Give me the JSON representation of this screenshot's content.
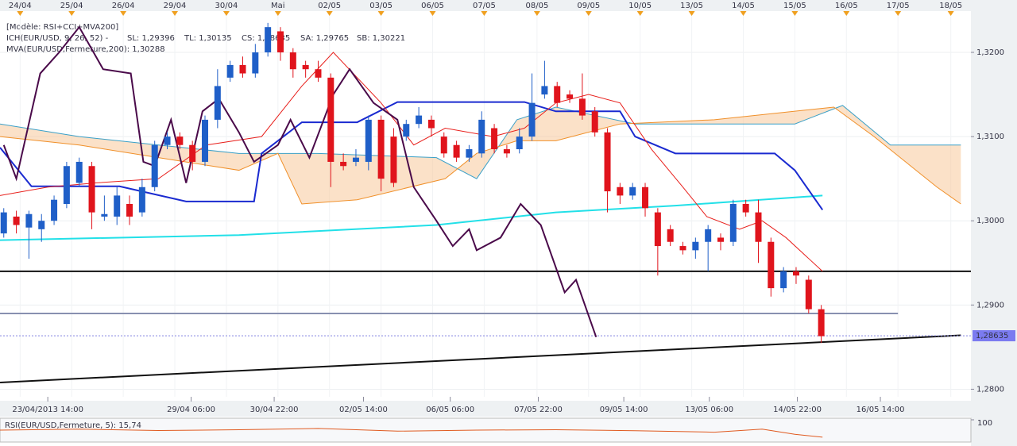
{
  "chart_data": {
    "type": "candlestick",
    "title": "[Modèle: RSI+CCI+MVA200]",
    "legend": [
      {
        "text": "ICH(EUR/USD, 9, 26, 52) -",
        "color": "#e0141c"
      },
      {
        "text": "SL: 1,29396",
        "color": "#e0141c"
      },
      {
        "text": "TL: 1,30135",
        "color": "#1a2ad0"
      },
      {
        "text": "CS: 1,28635",
        "color": "#2a2a60"
      },
      {
        "text": "SA: 1,29765",
        "color": "#f0902a"
      },
      {
        "text": "SB: 1,30221",
        "color": "#2a9ac8"
      },
      {
        "text": "MVA(EUR/USD,Fermeture,200): 1,30288",
        "color": "#22e0e8"
      }
    ],
    "up_color": "#1f5fc8",
    "down_color": "#e0141c",
    "x": [
      0,
      1,
      2,
      3,
      4,
      5,
      6,
      7,
      8,
      9,
      10,
      11,
      12,
      13,
      14,
      15,
      16,
      17,
      18,
      19,
      20,
      21,
      22,
      23,
      24,
      25,
      26,
      27,
      28,
      29,
      30,
      31,
      32,
      33,
      34,
      35,
      36,
      37,
      38,
      39,
      40,
      41,
      42,
      43,
      44,
      45,
      46,
      47,
      48,
      49,
      50,
      51,
      52,
      53,
      54,
      55,
      56,
      57,
      58,
      59,
      60,
      61,
      62,
      63,
      64,
      65
    ],
    "open": [
      1.2985,
      1.3005,
      1.2992,
      1.299,
      1.3,
      1.302,
      1.3045,
      1.3065,
      1.3005,
      1.3005,
      1.302,
      1.301,
      1.304,
      1.309,
      1.31,
      1.309,
      1.307,
      1.312,
      1.317,
      1.3185,
      1.3175,
      1.32,
      1.3225,
      1.32,
      1.3185,
      1.318,
      1.317,
      1.307,
      1.307,
      1.307,
      1.312,
      1.31,
      1.31,
      1.3115,
      1.312,
      1.31,
      1.309,
      1.3075,
      1.308,
      1.311,
      1.3085,
      1.3085,
      1.31,
      1.315,
      1.316,
      1.315,
      1.3145,
      1.313,
      1.3105,
      1.304,
      1.303,
      1.304,
      1.301,
      1.299,
      1.297,
      1.2965,
      1.2975,
      1.298,
      1.2975,
      1.302,
      1.301,
      1.2975,
      1.292,
      1.294,
      1.293,
      1.2895
    ],
    "high": [
      1.3015,
      1.3012,
      1.3012,
      1.3008,
      1.303,
      1.307,
      1.3075,
      1.307,
      1.303,
      1.304,
      1.303,
      1.305,
      1.3095,
      1.3105,
      1.3105,
      1.3095,
      1.3125,
      1.318,
      1.319,
      1.3195,
      1.321,
      1.3235,
      1.323,
      1.3205,
      1.319,
      1.319,
      1.3175,
      1.308,
      1.3085,
      1.3125,
      1.3125,
      1.311,
      1.312,
      1.3135,
      1.3125,
      1.3105,
      1.3095,
      1.309,
      1.313,
      1.3115,
      1.309,
      1.311,
      1.3175,
      1.319,
      1.3165,
      1.3155,
      1.3175,
      1.3135,
      1.311,
      1.3045,
      1.3045,
      1.3045,
      1.3015,
      1.2995,
      1.2975,
      1.298,
      1.2995,
      1.2985,
      1.3025,
      1.3025,
      1.3025,
      1.298,
      1.2945,
      1.2945,
      1.2935,
      1.29
    ],
    "low": [
      1.298,
      1.2985,
      1.2955,
      1.2975,
      1.2995,
      1.3015,
      1.304,
      1.299,
      1.3,
      1.2995,
      1.2995,
      1.3005,
      1.3035,
      1.3085,
      1.3085,
      1.306,
      1.3065,
      1.311,
      1.3165,
      1.317,
      1.317,
      1.3195,
      1.319,
      1.317,
      1.317,
      1.3165,
      1.304,
      1.306,
      1.3065,
      1.306,
      1.3035,
      1.304,
      1.3095,
      1.311,
      1.31,
      1.3075,
      1.307,
      1.307,
      1.3075,
      1.308,
      1.3075,
      1.308,
      1.3095,
      1.3145,
      1.3135,
      1.314,
      1.312,
      1.31,
      1.301,
      1.302,
      1.3025,
      1.3005,
      1.2935,
      1.297,
      1.296,
      1.2955,
      1.294,
      1.2965,
      1.297,
      1.3005,
      1.295,
      1.291,
      1.2915,
      1.2925,
      1.289,
      1.2855
    ],
    "close": [
      1.301,
      1.2995,
      1.3008,
      1.3,
      1.3025,
      1.3065,
      1.307,
      1.301,
      1.3008,
      1.303,
      1.3005,
      1.304,
      1.309,
      1.31,
      1.309,
      1.307,
      1.312,
      1.316,
      1.3185,
      1.3175,
      1.32,
      1.323,
      1.32,
      1.318,
      1.318,
      1.317,
      1.307,
      1.3065,
      1.3075,
      1.312,
      1.305,
      1.3045,
      1.3115,
      1.3125,
      1.311,
      1.308,
      1.3075,
      1.3085,
      1.312,
      1.3085,
      1.308,
      1.31,
      1.314,
      1.316,
      1.314,
      1.3145,
      1.3125,
      1.3105,
      1.3035,
      1.303,
      1.304,
      1.3015,
      1.297,
      1.2975,
      1.2965,
      1.2975,
      1.299,
      1.2975,
      1.302,
      1.301,
      1.2975,
      1.292,
      1.294,
      1.2935,
      1.2895,
      1.2863
    ],
    "cloud": {
      "color": "#f7c99b",
      "a": {
        "color": "#3aa0c8",
        "x": [
          -0.3,
          6.0,
          12.3,
          18.7,
          25.0,
          34.4,
          37.6,
          40.8,
          43.9,
          50.2,
          62.9,
          66.7,
          70.5,
          76.1
        ],
        "values": [
          1.3115,
          1.31,
          1.309,
          1.308,
          1.308,
          1.3075,
          1.305,
          1.312,
          1.3135,
          1.3115,
          1.3115,
          1.3137,
          1.309,
          1.309
        ]
      },
      "b": {
        "color": "#f0902a",
        "x": [
          -0.3,
          6.0,
          12.3,
          18.7,
          21.8,
          23.7,
          28.1,
          35.1,
          37.6,
          40.8,
          43.9,
          49.0,
          56.5,
          66.0,
          69.2,
          74.2,
          76.1
        ],
        "values": [
          1.31,
          1.309,
          1.3075,
          1.306,
          1.308,
          1.302,
          1.3025,
          1.305,
          1.308,
          1.3095,
          1.3095,
          1.3115,
          1.312,
          1.3135,
          1.31,
          1.304,
          1.302
        ]
      }
    },
    "overlays": [
      {
        "color": "#22e0e8",
        "width": 2,
        "x": [
          -0.3,
          18.7,
          34.4,
          43.9,
          53.4,
          65.1
        ],
        "values": [
          1.2977,
          1.2983,
          1.2995,
          1.301,
          1.3018,
          1.303
        ]
      },
      {
        "color": "#1a2ad0",
        "width": 2,
        "x": [
          -0.3,
          2.2,
          9.2,
          14.5,
          19.9,
          20.5,
          23.7,
          28.1,
          31.3,
          41.4,
          43.9,
          49.0,
          50.2,
          53.4,
          61.3,
          62.9,
          65.1
        ],
        "values": [
          1.3087,
          1.3041,
          1.3041,
          1.3023,
          1.3023,
          1.308,
          1.3117,
          1.3117,
          1.3141,
          1.3141,
          1.313,
          1.313,
          1.31,
          1.308,
          1.308,
          1.306,
          1.3013
        ]
      },
      {
        "color": "#e8201c",
        "width": 1,
        "x": [
          -0.3,
          3.5,
          7.3,
          12.3,
          16.1,
          20.5,
          23.7,
          26.2,
          28.1,
          30.0,
          32.6,
          35.1,
          38.9,
          41.4,
          43.9,
          46.5,
          49.0,
          51.5,
          54.0,
          55.9,
          58.5,
          60.3,
          62.2,
          65.1
        ],
        "values": [
          1.303,
          1.304,
          1.3045,
          1.305,
          1.309,
          1.31,
          1.316,
          1.32,
          1.317,
          1.314,
          1.309,
          1.311,
          1.31,
          1.311,
          1.314,
          1.315,
          1.314,
          1.3085,
          1.304,
          1.3005,
          1.299,
          1.3,
          1.298,
          1.294
        ]
      },
      {
        "color": "#4a0a4a",
        "width": 2,
        "x": [
          0.0,
          1.0,
          2.9,
          4.4,
          6.0,
          7.9,
          10.1,
          11.1,
          12.0,
          13.3,
          14.5,
          15.8,
          17.1,
          18.7,
          19.9,
          21.8,
          22.8,
          24.3,
          26.2,
          27.5,
          29.4,
          31.3,
          32.6,
          34.4,
          35.7,
          37.0,
          37.6,
          39.5,
          41.1,
          42.7,
          44.6,
          45.5,
          47.1
        ],
        "values": [
          1.309,
          1.305,
          1.3175,
          1.32,
          1.323,
          1.318,
          1.3175,
          1.307,
          1.3065,
          1.312,
          1.3045,
          1.313,
          1.3145,
          1.3105,
          1.307,
          1.309,
          1.312,
          1.3075,
          1.315,
          1.318,
          1.314,
          1.312,
          1.304,
          1.3,
          1.297,
          1.299,
          1.2965,
          1.298,
          1.302,
          1.2995,
          1.2915,
          1.293,
          1.2862
        ]
      }
    ],
    "levels": [
      {
        "value": 1.294,
        "color": "#111111",
        "until": 76.9
      },
      {
        "value": 1.289,
        "color": "#8890b0",
        "until": 71.1
      }
    ],
    "trend": {
      "color": "#111111",
      "x": [
        -0.3,
        76.1
      ],
      "values": [
        1.2808,
        1.2864
      ]
    },
    "last_price": {
      "value": 1.28635,
      "label": "1,28635"
    },
    "xlim": [
      -0.3,
      76.9
    ],
    "ylim": [
      1.2791,
      1.3249
    ],
    "yticks": [
      {
        "value": 1.28,
        "label": "1,2800"
      },
      {
        "value": 1.29,
        "label": "1,2900"
      },
      {
        "value": 1.3,
        "label": "1,3000"
      },
      {
        "value": 1.31,
        "label": "1,3100"
      },
      {
        "value": 1.32,
        "label": "1,3200"
      }
    ],
    "top_xticks": [
      {
        "value": 1.3,
        "label": "24/04"
      },
      {
        "value": 5.4,
        "label": "25/04"
      },
      {
        "value": 9.5,
        "label": "26/04"
      },
      {
        "value": 13.6,
        "label": "29/04"
      },
      {
        "value": 17.7,
        "label": "30/04"
      },
      {
        "value": 21.8,
        "label": "Mai"
      },
      {
        "value": 25.9,
        "label": "02/05"
      },
      {
        "value": 30.0,
        "label": "03/05"
      },
      {
        "value": 34.1,
        "label": "06/05"
      },
      {
        "value": 38.2,
        "label": "07/05"
      },
      {
        "value": 42.4,
        "label": "08/05"
      },
      {
        "value": 46.5,
        "label": "09/05"
      },
      {
        "value": 50.6,
        "label": "10/05"
      },
      {
        "value": 54.7,
        "label": "13/05"
      },
      {
        "value": 58.8,
        "label": "14/05"
      },
      {
        "value": 62.9,
        "label": "15/05"
      },
      {
        "value": 67.0,
        "label": "16/05"
      },
      {
        "value": 71.1,
        "label": "17/05"
      },
      {
        "value": 75.3,
        "label": "18/05"
      }
    ],
    "bottom_xticks": [
      {
        "value": 3.5,
        "label": "23/04/2013 14:00"
      },
      {
        "value": 14.9,
        "label": "29/04 06:00"
      },
      {
        "value": 21.5,
        "label": "30/04 22:00"
      },
      {
        "value": 28.6,
        "label": "02/05 14:00"
      },
      {
        "value": 35.5,
        "label": "06/05 06:00"
      },
      {
        "value": 42.5,
        "label": "07/05 22:00"
      },
      {
        "value": 49.3,
        "label": "09/05 14:00"
      },
      {
        "value": 56.1,
        "label": "13/05 06:00"
      },
      {
        "value": 63.1,
        "label": "14/05 22:00"
      },
      {
        "value": 69.7,
        "label": "16/05 14:00"
      }
    ],
    "rsi": {
      "title": "RSI(EUR/USD,Fermeture, 5): 15,74",
      "color": "#e05a20",
      "ylim": [
        0,
        100
      ],
      "yticks": [
        {
          "value": 100,
          "label": "100"
        }
      ],
      "x": [
        -0.3,
        6.0,
        12.3,
        18.7,
        25.0,
        31.3,
        37.6,
        43.9,
        50.2,
        56.5,
        60.3,
        62.9,
        65.1
      ],
      "values": [
        50,
        55,
        48,
        52,
        58,
        45,
        50,
        52,
        47,
        40,
        55,
        30,
        15.74
      ]
    }
  }
}
